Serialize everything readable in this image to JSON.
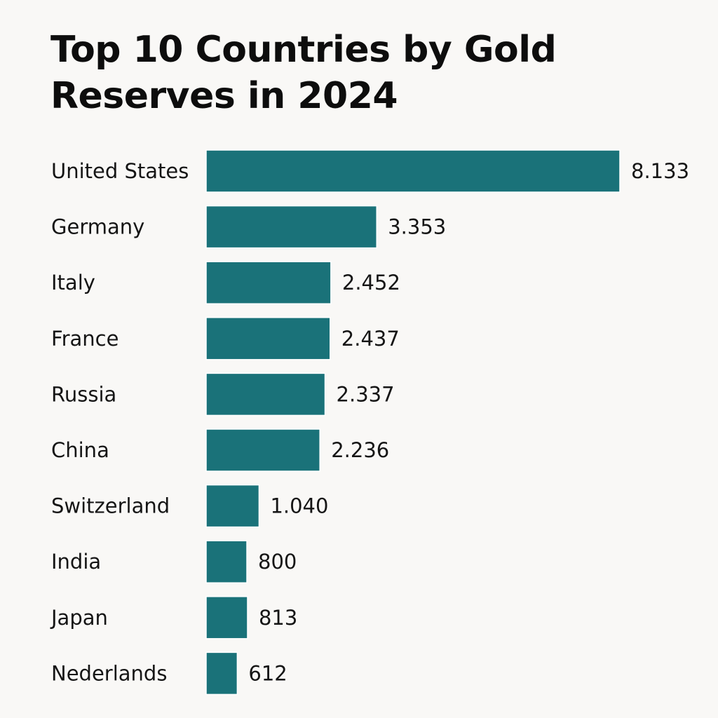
{
  "chart_data": {
    "type": "bar",
    "orientation": "horizontal",
    "title": "Top 10 Countries by Gold Reserves in 2024",
    "xlabel": "",
    "ylabel": "",
    "categories": [
      "United States",
      "Germany",
      "Italy",
      "France",
      "Russia",
      "China",
      "Switzerland",
      "India",
      "Japan",
      "Nederlands"
    ],
    "values": [
      8133,
      3353,
      2452,
      2437,
      2337,
      2236,
      1040,
      800,
      813,
      612
    ],
    "value_labels": [
      "8.133",
      "3.353",
      "2.452",
      "2.437",
      "2.337",
      "2.236",
      "1.040",
      "800",
      "813",
      "612"
    ],
    "grid": false,
    "legend": "none",
    "colors": {
      "bar": "#1a7279",
      "background": "#f9f8f6",
      "text": "#151515"
    }
  }
}
